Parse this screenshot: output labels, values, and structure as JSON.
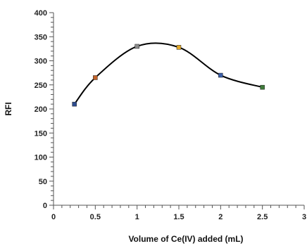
{
  "chart_data": {
    "type": "line",
    "xlabel": "Volume of Ce(IV) added (mL)",
    "ylabel": "RFI",
    "xlim": [
      0,
      3
    ],
    "ylim": [
      0,
      400
    ],
    "x_ticks": [
      0,
      0.5,
      1,
      1.5,
      2,
      2.5,
      3
    ],
    "y_ticks": [
      0,
      50,
      100,
      150,
      200,
      250,
      300,
      350,
      400
    ],
    "x_tick_labels": [
      "0",
      "0.5",
      "1",
      "1.5",
      "2",
      "2.5",
      "3"
    ],
    "y_tick_labels": [
      "0",
      "50",
      "100",
      "150",
      "200",
      "250",
      "300",
      "350",
      "400"
    ],
    "grid": false,
    "smooth": true,
    "line_color": "#000000",
    "series": [
      {
        "x": [
          0.25,
          0.5,
          1.0,
          1.5,
          2.0,
          2.5
        ],
        "y": [
          210,
          265,
          330,
          328,
          270,
          245
        ],
        "marker_colors": [
          "#2e4d8f",
          "#c0622a",
          "#8a8a8a",
          "#e3a92a",
          "#3a5ea8",
          "#3f7a3a"
        ]
      }
    ]
  }
}
